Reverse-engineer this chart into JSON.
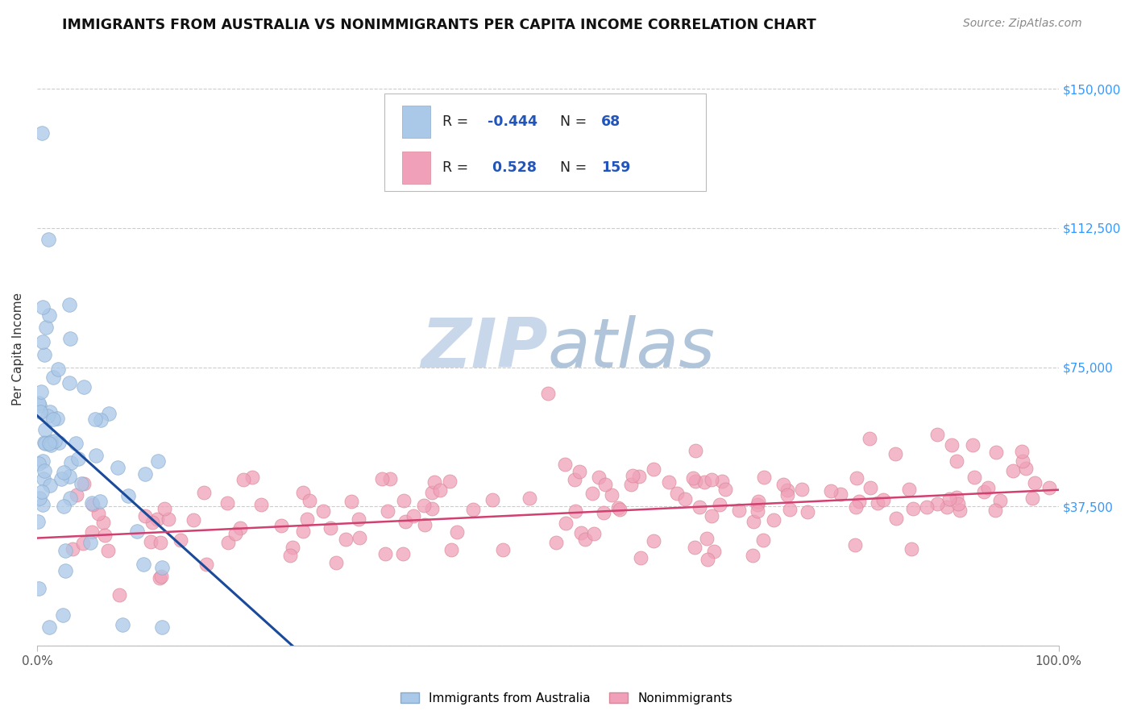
{
  "title": "IMMIGRANTS FROM AUSTRALIA VS NONIMMIGRANTS PER CAPITA INCOME CORRELATION CHART",
  "source": "Source: ZipAtlas.com",
  "ylabel": "Per Capita Income",
  "xlim": [
    0,
    100
  ],
  "ylim": [
    0,
    160000
  ],
  "yticks": [
    0,
    37500,
    75000,
    112500,
    150000
  ],
  "ytick_labels": [
    "",
    "$37,500",
    "$75,000",
    "$112,500",
    "$150,000"
  ],
  "xtick_labels": [
    "0.0%",
    "100.0%"
  ],
  "legend_r1": "-0.444",
  "legend_n1": "68",
  "legend_r2": "0.528",
  "legend_n2": "159",
  "blue_color": "#aac8e8",
  "blue_edge": "#88aacc",
  "pink_color": "#f0a0b8",
  "pink_edge": "#d88898",
  "blue_line_color": "#1a4a9a",
  "pink_line_color": "#d04070",
  "title_color": "#111111",
  "right_tick_color": "#3399ff",
  "watermark_zip_color": "#c8d8ea",
  "watermark_atlas_color": "#b0c4da",
  "background_color": "#ffffff",
  "grid_color": "#cccccc",
  "blue_line_x0": 0,
  "blue_line_y0": 62000,
  "blue_line_x1": 25,
  "blue_line_y1": 0,
  "pink_line_x0": 0,
  "pink_line_y0": 29000,
  "pink_line_x1": 100,
  "pink_line_y1": 42000
}
